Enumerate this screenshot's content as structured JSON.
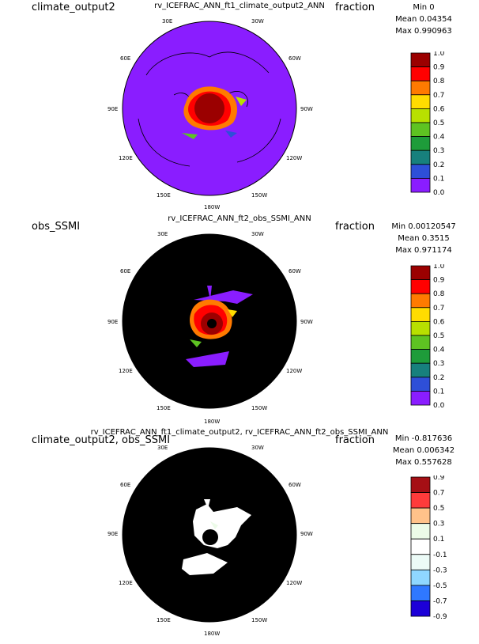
{
  "panels": [
    {
      "left_title": "climate_output2",
      "center_title": "rv_ICEFRAC_ANN_ft1_climate_output2_ANN",
      "units": "fraction",
      "stats": [
        "Min 0",
        "Mean 0.04354",
        "Max 0.990963"
      ],
      "colorbar_labels": [
        "1.0",
        "0.9",
        "0.8",
        "0.7",
        "0.6",
        "0.5",
        "0.4",
        "0.3",
        "0.2",
        "0.1",
        "0.0"
      ],
      "colorbar_colors": [
        "#9b0000",
        "#ff0000",
        "#ff7a00",
        "#ffdc00",
        "#b8e000",
        "#5ec322",
        "#1e9c3a",
        "#17807d",
        "#2e4fd8",
        "#8a1dff"
      ],
      "background": "#8a1dff"
    },
    {
      "left_title": "obs_SSMI",
      "center_title": "rv_ICEFRAC_ANN_ft2_obs_SSMI_ANN",
      "units": "fraction",
      "stats": [
        "Min 0.00120547",
        "Mean 0.3515",
        "Max 0.971174"
      ],
      "colorbar_labels": [
        "1.0",
        "0.9",
        "0.8",
        "0.7",
        "0.6",
        "0.5",
        "0.4",
        "0.3",
        "0.2",
        "0.1",
        "0.0"
      ],
      "colorbar_colors": [
        "#9b0000",
        "#ff0000",
        "#ff7a00",
        "#ffdc00",
        "#b8e000",
        "#5ec322",
        "#1e9c3a",
        "#17807d",
        "#2e4fd8",
        "#8a1dff"
      ],
      "background": "#000000"
    },
    {
      "left_title": "climate_output2, obs_SSMI",
      "center_title": "rv_ICEFRAC_ANN_ft1_climate_output2, rv_ICEFRAC_ANN_ft2_obs_SSMI_ANN",
      "units": "fraction",
      "stats": [
        "Min -0.817636",
        "Mean 0.006342",
        "Max 0.557628"
      ],
      "colorbar_labels": [
        "0.9",
        "0.7",
        "0.5",
        "0.3",
        "0.1",
        "-0.1",
        "-0.3",
        "-0.5",
        "-0.7",
        "-0.9"
      ],
      "colorbar_colors": [
        "#a50f15",
        "#ff3b3b",
        "#ffc28a",
        "#ecfbe8",
        "#ffffff",
        "#ecfbf7",
        "#8fd7ff",
        "#2f78ff",
        "#1c00d8"
      ],
      "background": "#000000"
    }
  ],
  "map_labels": [
    "30E",
    "30W",
    "60E",
    "60W",
    "90E",
    "90W",
    "120E",
    "120W",
    "150E",
    "150W",
    "180W"
  ],
  "chart_data": [
    {
      "type": "heatmap",
      "title": "rv_ICEFRAC_ANN_ft1_climate_output2_ANN",
      "colorbar_ticks": [
        1.0,
        0.9,
        0.8,
        0.7,
        0.6,
        0.5,
        0.4,
        0.3,
        0.2,
        0.1,
        0.0
      ],
      "min": 0,
      "mean": 0.04354,
      "max": 0.990963
    },
    {
      "type": "heatmap",
      "title": "rv_ICEFRAC_ANN_ft2_obs_SSMI_ANN",
      "colorbar_ticks": [
        1.0,
        0.9,
        0.8,
        0.7,
        0.6,
        0.5,
        0.4,
        0.3,
        0.2,
        0.1,
        0.0
      ],
      "min": 0.00120547,
      "mean": 0.3515,
      "max": 0.971174
    },
    {
      "type": "heatmap",
      "title": "rv_ICEFRAC_ANN_ft1_climate_output2, rv_ICEFRAC_ANN_ft2_obs_SSMI_ANN",
      "colorbar_ticks": [
        0.9,
        0.7,
        0.5,
        0.3,
        0.1,
        -0.1,
        -0.3,
        -0.5,
        -0.7,
        -0.9
      ],
      "min": -0.817636,
      "mean": 0.006342,
      "max": 0.557628
    }
  ]
}
